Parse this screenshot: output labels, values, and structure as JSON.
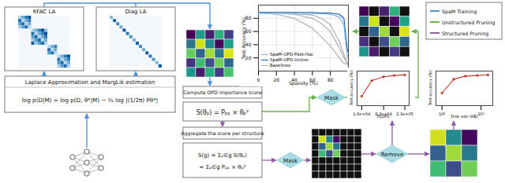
{
  "diagram": {
    "kfac_box": {
      "label": "KFAC LA"
    },
    "diag_box": {
      "label": "Diag LA"
    },
    "laplace_box": {
      "title": "Laplace Approximation and MargLik estimation",
      "formula": "log p(D|M) ≈ log p(D, θ*|M) − ½ log |(1/2π) Pθ*|"
    },
    "opd_box": {
      "title": "Compute OPD importance score",
      "formula": "S(θₚ) = Pₚₚ × θₚ²"
    },
    "aggregate_box": {
      "title": "Aggregate the score per structure",
      "formula": [
        "S(g) = Σₚ∈g S(θₚ)",
        "= Σₚ∈g Pₚₚ × θₚ²"
      ]
    },
    "nodes": [
      {
        "label": "Mask"
      },
      {
        "label": "Mask"
      },
      {
        "label": "Remove"
      }
    ],
    "legend": [
      {
        "label": "SpaM Training",
        "color": "#4a90d9"
      },
      {
        "label": "Unstructured Pruning",
        "color": "#6ab04c"
      },
      {
        "label": "Structured Pruning",
        "color": "#8e5ea2"
      }
    ],
    "unstructured_mask": [
      [
        1,
        0,
        1,
        1,
        0
      ],
      [
        1,
        1,
        0,
        1,
        1
      ],
      [
        0,
        1,
        1,
        0,
        1
      ],
      [
        1,
        0,
        1,
        1,
        1
      ],
      [
        1,
        1,
        0,
        1,
        0
      ]
    ],
    "structured_mask": [
      [
        0,
        0,
        0,
        0,
        0,
        0,
        0
      ],
      [
        0,
        1,
        1,
        1,
        0,
        0,
        0
      ],
      [
        0,
        1,
        1,
        1,
        0,
        0,
        0
      ],
      [
        0,
        1,
        1,
        1,
        0,
        0,
        0
      ],
      [
        0,
        0,
        0,
        0,
        0,
        0,
        0
      ],
      [
        0,
        0,
        0,
        0,
        0,
        0,
        0
      ],
      [
        0,
        0,
        0,
        0,
        0,
        0,
        0
      ]
    ]
  },
  "chart_data": [
    {
      "type": "line",
      "x_label": "Sparsity (%)",
      "y_label": "Test Accuracy (%)",
      "x": [
        0,
        20,
        40,
        60,
        70,
        80,
        90,
        95,
        99
      ],
      "series": [
        {
          "name": "SpaM-OPD-Post-Hoc",
          "color": "#7fb3e0",
          "values": [
            88,
            88,
            88,
            87,
            87,
            86,
            82,
            70,
            20
          ]
        },
        {
          "name": "SpaM-OPD-Online",
          "color": "#1f5fa8",
          "values": [
            89,
            89,
            89,
            89,
            88,
            88,
            86,
            80,
            30
          ]
        },
        {
          "name": "Baselines",
          "color": "#b0b0b0",
          "values": [
            [
              89,
              88,
              86,
              80,
              72,
              60,
              35,
              20,
              12
            ],
            [
              88,
              86,
              80,
              65,
              52,
              38,
              20,
              12,
              10
            ],
            [
              89,
              88,
              87,
              85,
              80,
              70,
              45,
              25,
              12
            ]
          ]
        }
      ],
      "xlim": [
        0,
        100
      ],
      "xticks": [
        0,
        20,
        40,
        60,
        80
      ],
      "ylim": [
        0,
        100
      ],
      "yticks": [
        20,
        40,
        60,
        80
      ],
      "grid": true,
      "legend": "lower left"
    },
    {
      "type": "line",
      "x_label": "FLOPS",
      "y_label": "Test accuracy (%)",
      "x": [
        16000,
        30000,
        62000,
        120000,
        230000
      ],
      "values": [
        55,
        80,
        86,
        88,
        89
      ],
      "color": "#c0392b",
      "marker": "circle",
      "log": "x",
      "xlim": [
        12000,
        300000
      ],
      "xticks": [
        {
          "value": 16000,
          "label": "1.6e+04"
        },
        {
          "value": 62000,
          "label": "6.2e+04"
        },
        {
          "value": 230000,
          "label": "2.3e+05"
        }
      ],
      "ylim": [
        40,
        95
      ],
      "tick_labels": "x"
    },
    {
      "type": "line",
      "x_label": "Disk size (KB)",
      "y_label": "Test accuracy (%)",
      "x": [
        100,
        200,
        400,
        800,
        1500
      ],
      "values": [
        60,
        82,
        87,
        88,
        89
      ],
      "color": "#c0392b",
      "marker": "circle",
      "log": "x",
      "xlim": [
        70,
        2000
      ],
      "xticks": [
        {
          "value": 100,
          "label": "10²"
        },
        {
          "value": 1000,
          "label": "10³"
        }
      ],
      "ylim": [
        40,
        95
      ],
      "tick_labels": "x"
    }
  ]
}
